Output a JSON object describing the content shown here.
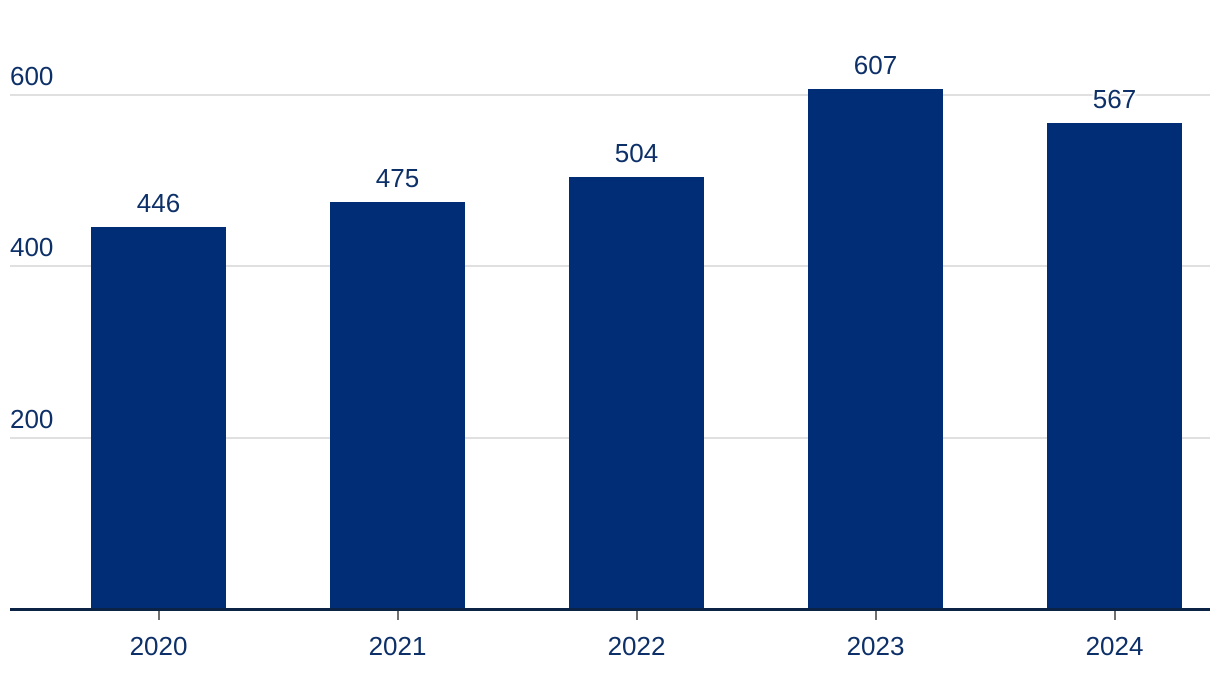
{
  "chart_data": {
    "type": "bar",
    "categories": [
      "2020",
      "2021",
      "2022",
      "2023",
      "2024"
    ],
    "values": [
      446,
      475,
      504,
      607,
      567
    ],
    "title": "",
    "xlabel": "",
    "ylabel": "",
    "ylim": [
      0,
      650
    ],
    "yticks": [
      600,
      400,
      200
    ],
    "grid": true,
    "legend": false,
    "colors": {
      "bar": "#002d76",
      "axis_line": "#0b2344",
      "text": "#0d3068",
      "tick": "#6f6f6f",
      "gridline": "#e0e0e0",
      "background": "#ffffff"
    }
  }
}
